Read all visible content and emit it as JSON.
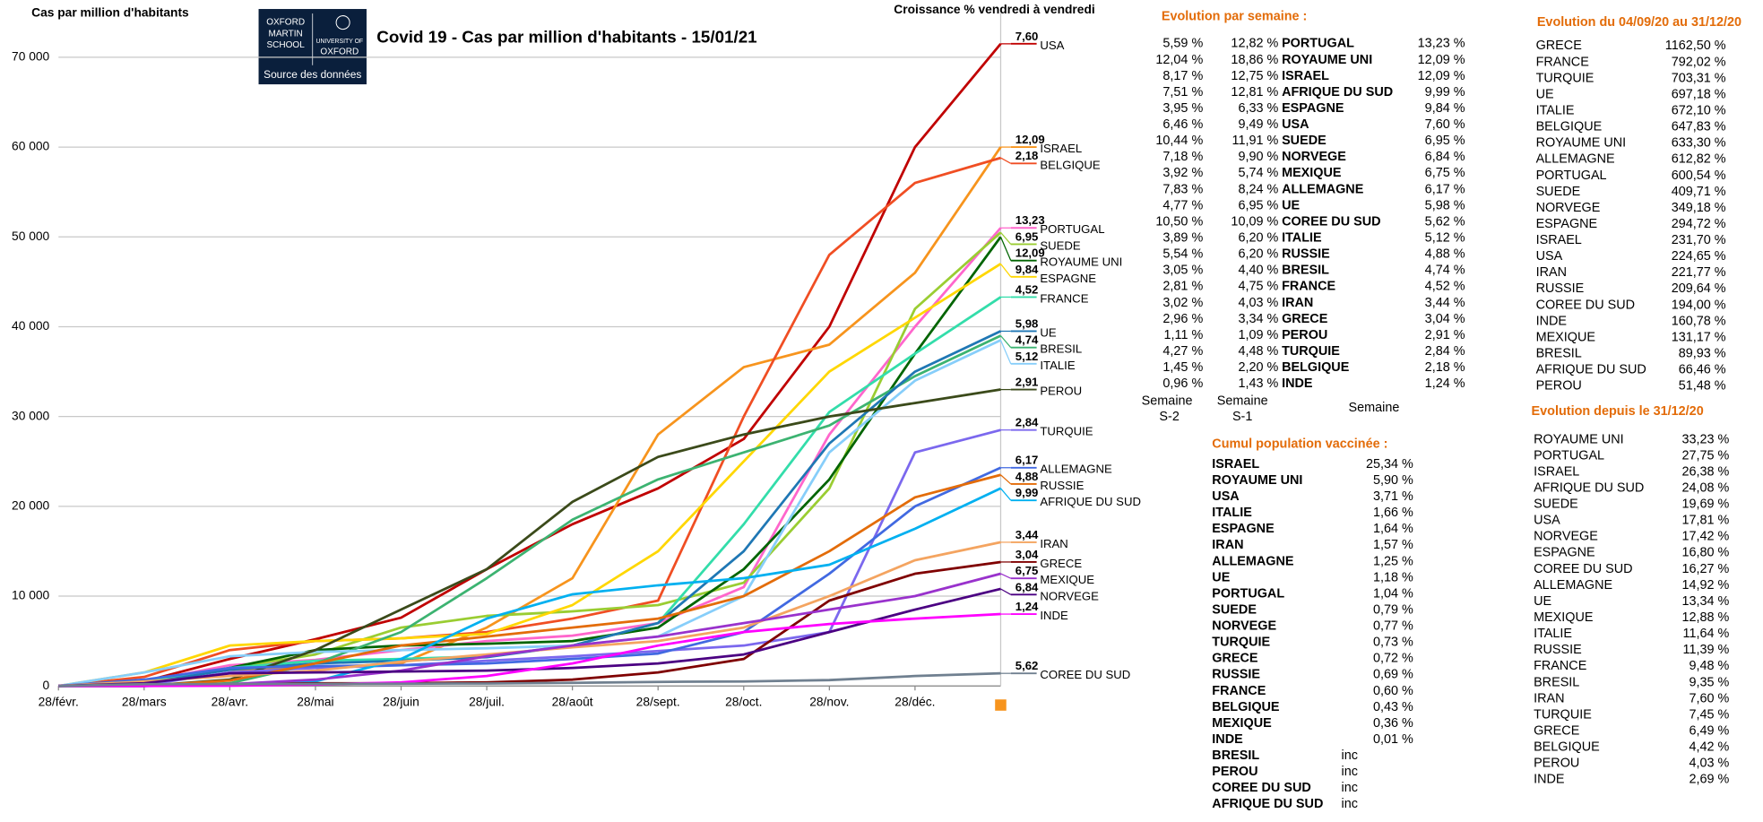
{
  "chart_data": {
    "type": "line",
    "title": "Covid 19 - Cas par million d'habitants - 15/01/21",
    "y_label": "Cas par million d'habitants",
    "growth_heading": "Croissance % vendredi à vendredi",
    "categories": [
      "28/févr.",
      "28/mars",
      "28/avr.",
      "28/mai",
      "28/juin",
      "28/juil.",
      "28/août",
      "28/sept.",
      "28/oct.",
      "28/nov.",
      "28/déc.",
      null
    ],
    "ylim": [
      0,
      75000
    ],
    "yticks": [
      {
        "value": 0,
        "label": "0"
      },
      {
        "value": 10000,
        "label": "10 000"
      },
      {
        "value": 20000,
        "label": "20 000"
      },
      {
        "value": 30000,
        "label": "30 000"
      },
      {
        "value": 40000,
        "label": "40 000"
      },
      {
        "value": 50000,
        "label": "50 000"
      },
      {
        "value": 60000,
        "label": "60 000"
      },
      {
        "value": 70000,
        "label": "70 000"
      }
    ],
    "grid": true,
    "series": [
      {
        "name": "USA",
        "growth": "7,60",
        "color": "#c00000",
        "values": [
          0,
          500,
          3000,
          5200,
          7600,
          13000,
          18000,
          22000,
          27500,
          40000,
          60000,
          71500
        ]
      },
      {
        "name": "ISRAEL",
        "growth": "12,09",
        "color": "#f7941d",
        "values": [
          0,
          500,
          1800,
          2000,
          2500,
          6500,
          12000,
          28000,
          35500,
          38000,
          46000,
          60000
        ]
      },
      {
        "name": "BELGIQUE",
        "growth": "2,18",
        "color": "#f04e23",
        "values": [
          0,
          1000,
          4000,
          5000,
          5300,
          6000,
          7500,
          9500,
          30000,
          48000,
          56000,
          58800
        ]
      },
      {
        "name": "PORTUGAL",
        "growth": "13,23",
        "color": "#ff66cc",
        "values": [
          0,
          500,
          2300,
          2900,
          4000,
          5000,
          5600,
          7000,
          11000,
          28000,
          40000,
          51000
        ]
      },
      {
        "name": "SUEDE",
        "growth": "6,95",
        "color": "#9acd32",
        "values": [
          0,
          500,
          2000,
          3500,
          6500,
          7800,
          8300,
          9000,
          11500,
          22000,
          42000,
          50500
        ]
      },
      {
        "name": "ROYAUME UNI",
        "growth": "12,09",
        "color": "#006400",
        "values": [
          0,
          300,
          2000,
          4000,
          4500,
          4700,
          5000,
          6500,
          13000,
          23000,
          37000,
          50000
        ]
      },
      {
        "name": "ESPAGNE",
        "growth": "9,84",
        "color": "#ffd700",
        "values": [
          0,
          1500,
          4500,
          5000,
          5300,
          5800,
          9000,
          15000,
          25000,
          35000,
          41000,
          47000
        ]
      },
      {
        "name": "FRANCE",
        "growth": "4,52",
        "color": "#33ddaa",
        "values": [
          0,
          500,
          2000,
          2800,
          3000,
          3300,
          4500,
          7000,
          18000,
          30500,
          37000,
          43300
        ]
      },
      {
        "name": "BRESIL",
        "growth": "4,74",
        "color": "#3cb371",
        "values": [
          0,
          0,
          300,
          2500,
          6000,
          12000,
          18500,
          23000,
          26000,
          29000,
          34500,
          39000
        ]
      },
      {
        "name": "UE",
        "growth": "5,98",
        "color": "#1f77b4",
        "values": [
          0,
          300,
          1800,
          2500,
          2800,
          3200,
          4500,
          7000,
          15000,
          27000,
          35000,
          39500
        ]
      },
      {
        "name": "ITALIE",
        "growth": "5,12",
        "color": "#87cefa",
        "values": [
          0,
          1500,
          3300,
          3800,
          4000,
          4200,
          4500,
          5500,
          10000,
          26000,
          34000,
          38500
        ]
      },
      {
        "name": "PEROU",
        "growth": "2,91",
        "color": "#3b4a1a",
        "values": [
          0,
          0,
          700,
          4000,
          8500,
          13000,
          20500,
          25500,
          28000,
          30000,
          31500,
          33000
        ]
      },
      {
        "name": "TURQUIE",
        "growth": "2,84",
        "color": "#7b68ee",
        "values": [
          0,
          100,
          1500,
          2000,
          2300,
          2800,
          3300,
          3900,
          4500,
          6000,
          26000,
          28500
        ]
      },
      {
        "name": "ALLEMAGNE",
        "growth": "6,17",
        "color": "#4169e1",
        "values": [
          0,
          700,
          2000,
          2200,
          2300,
          2500,
          3000,
          3600,
          6000,
          12500,
          20000,
          24300
        ]
      },
      {
        "name": "RUSSIE",
        "growth": "4,88",
        "color": "#e36c09",
        "values": [
          0,
          0,
          600,
          2500,
          4500,
          5500,
          6500,
          7500,
          10000,
          15000,
          21000,
          23500
        ]
      },
      {
        "name": "AFRIQUE DU SUD",
        "growth": "9,99",
        "color": "#00b0f0",
        "values": [
          0,
          0,
          100,
          500,
          3000,
          7500,
          10200,
          11200,
          12000,
          13500,
          17500,
          22000
        ]
      },
      {
        "name": "IRAN",
        "growth": "3,44",
        "color": "#f4a460",
        "values": [
          0,
          500,
          1100,
          1700,
          2700,
          3500,
          4300,
          5000,
          6500,
          10000,
          14000,
          16000
        ]
      },
      {
        "name": "GRECE",
        "growth": "3,04",
        "color": "#7f0000",
        "values": [
          0,
          100,
          200,
          300,
          300,
          400,
          700,
          1500,
          3000,
          9500,
          12500,
          13800
        ]
      },
      {
        "name": "MEXIQUE",
        "growth": "6,75",
        "color": "#9932cc",
        "values": [
          0,
          0,
          200,
          700,
          1700,
          3300,
          4500,
          5500,
          7000,
          8500,
          10000,
          12500
        ]
      },
      {
        "name": "NORVEGE",
        "growth": "6,84",
        "color": "#4b0082",
        "values": [
          0,
          300,
          1400,
          1500,
          1600,
          1700,
          2000,
          2500,
          3500,
          6000,
          8500,
          10800
        ]
      },
      {
        "name": "INDE",
        "growth": "1,24",
        "color": "#ff00ff",
        "values": [
          0,
          0,
          20,
          150,
          400,
          1100,
          2500,
          4500,
          6000,
          6900,
          7500,
          8000
        ]
      },
      {
        "name": "COREE DU SUD",
        "growth": "5,62",
        "color": "#708090",
        "values": [
          0,
          200,
          210,
          220,
          250,
          280,
          350,
          450,
          500,
          650,
          1100,
          1400
        ]
      }
    ]
  },
  "logo": {
    "left": [
      "OXFORD",
      "MARTIN",
      "SCHOOL"
    ],
    "right": [
      "UNIVERSITY OF",
      "OXFORD"
    ],
    "link": "Source des données"
  },
  "weekly": {
    "title": "Evolution par semaine :",
    "rows": [
      [
        "5,59 %",
        "12,82 %",
        "PORTUGAL",
        "13,23 %"
      ],
      [
        "12,04 %",
        "18,86 %",
        "ROYAUME UNI",
        "12,09 %"
      ],
      [
        "8,17 %",
        "12,75 %",
        "ISRAEL",
        "12,09 %"
      ],
      [
        "7,51 %",
        "12,81 %",
        "AFRIQUE DU SUD",
        "9,99 %"
      ],
      [
        "3,95 %",
        "6,33 %",
        "ESPAGNE",
        "9,84 %"
      ],
      [
        "6,46 %",
        "9,49 %",
        "USA",
        "7,60 %"
      ],
      [
        "10,44 %",
        "11,91 %",
        "SUEDE",
        "6,95 %"
      ],
      [
        "7,18 %",
        "9,90 %",
        "NORVEGE",
        "6,84 %"
      ],
      [
        "3,92 %",
        "5,74 %",
        "MEXIQUE",
        "6,75 %"
      ],
      [
        "7,83 %",
        "8,24 %",
        "ALLEMAGNE",
        "6,17 %"
      ],
      [
        "4,77 %",
        "6,95 %",
        "UE",
        "5,98 %"
      ],
      [
        "10,50 %",
        "10,09 %",
        "COREE DU SUD",
        "5,62 %"
      ],
      [
        "3,89 %",
        "6,20 %",
        "ITALIE",
        "5,12 %"
      ],
      [
        "5,54 %",
        "6,20 %",
        "RUSSIE",
        "4,88 %"
      ],
      [
        "3,05 %",
        "4,40 %",
        "BRESIL",
        "4,74 %"
      ],
      [
        "2,81 %",
        "4,75 %",
        "FRANCE",
        "4,52 %"
      ],
      [
        "3,02 %",
        "4,03 %",
        "IRAN",
        "3,44 %"
      ],
      [
        "2,96 %",
        "3,34 %",
        "GRECE",
        "3,04 %"
      ],
      [
        "1,11 %",
        "1,09 %",
        "PEROU",
        "2,91 %"
      ],
      [
        "4,27 %",
        "4,48 %",
        "TURQUIE",
        "2,84 %"
      ],
      [
        "1,45 %",
        "2,20 %",
        "BELGIQUE",
        "2,18 %"
      ],
      [
        "0,96 %",
        "1,43 %",
        "INDE",
        "1,24 %"
      ]
    ],
    "s2": [
      "Semaine",
      "S-2"
    ],
    "s1": [
      "Semaine",
      "S-1"
    ],
    "current": "Semaine"
  },
  "vaccination": {
    "title": "Cumul population vaccinée :",
    "rows": [
      [
        "ISRAEL",
        "25,34 %"
      ],
      [
        "ROYAUME UNI",
        "5,90 %"
      ],
      [
        "USA",
        "3,71 %"
      ],
      [
        "ITALIE",
        "1,66 %"
      ],
      [
        "ESPAGNE",
        "1,64 %"
      ],
      [
        "IRAN",
        "1,57 %"
      ],
      [
        "ALLEMAGNE",
        "1,25 %"
      ],
      [
        "UE",
        "1,18 %"
      ],
      [
        "PORTUGAL",
        "1,04 %"
      ],
      [
        "SUEDE",
        "0,79 %"
      ],
      [
        "NORVEGE",
        "0,77 %"
      ],
      [
        "TURQUIE",
        "0,73 %"
      ],
      [
        "GRECE",
        "0,72 %"
      ],
      [
        "RUSSIE",
        "0,69 %"
      ],
      [
        "FRANCE",
        "0,60 %"
      ],
      [
        "BELGIQUE",
        "0,43 %"
      ],
      [
        "MEXIQUE",
        "0,36 %"
      ],
      [
        "INDE",
        "0,01 %"
      ],
      [
        "BRESIL",
        "inc"
      ],
      [
        "PEROU",
        "inc"
      ],
      [
        "COREE DU SUD",
        "inc"
      ],
      [
        "AFRIQUE DU SUD",
        "inc"
      ]
    ]
  },
  "evolution_sept": {
    "title": "Evolution du 04/09/20 au 31/12/20",
    "rows": [
      [
        "GRECE",
        "1162,50 %"
      ],
      [
        "FRANCE",
        "792,02 %"
      ],
      [
        "TURQUIE",
        "703,31 %"
      ],
      [
        "UE",
        "697,18 %"
      ],
      [
        "ITALIE",
        "672,10 %"
      ],
      [
        "BELGIQUE",
        "647,83 %"
      ],
      [
        "ROYAUME UNI",
        "633,30 %"
      ],
      [
        "ALLEMAGNE",
        "612,82 %"
      ],
      [
        "PORTUGAL",
        "600,54 %"
      ],
      [
        "SUEDE",
        "409,71 %"
      ],
      [
        "NORVEGE",
        "349,18 %"
      ],
      [
        "ESPAGNE",
        "294,72 %"
      ],
      [
        "ISRAEL",
        "231,70 %"
      ],
      [
        "USA",
        "224,65 %"
      ],
      [
        "IRAN",
        "221,77 %"
      ],
      [
        "RUSSIE",
        "209,64 %"
      ],
      [
        "COREE DU SUD",
        "194,00 %"
      ],
      [
        "INDE",
        "160,78 %"
      ],
      [
        "MEXIQUE",
        "131,17 %"
      ],
      [
        "BRESIL",
        "89,93 %"
      ],
      [
        "AFRIQUE DU SUD",
        "66,46 %"
      ],
      [
        "PEROU",
        "51,48 %"
      ]
    ]
  },
  "evolution_dec": {
    "title": "Evolution depuis le 31/12/20",
    "rows": [
      [
        "ROYAUME UNI",
        "33,23 %"
      ],
      [
        "PORTUGAL",
        "27,75 %"
      ],
      [
        "ISRAEL",
        "26,38 %"
      ],
      [
        "AFRIQUE DU SUD",
        "24,08 %"
      ],
      [
        "SUEDE",
        "19,69 %"
      ],
      [
        "USA",
        "17,81 %"
      ],
      [
        "NORVEGE",
        "17,42 %"
      ],
      [
        "ESPAGNE",
        "16,80 %"
      ],
      [
        "COREE DU SUD",
        "16,27 %"
      ],
      [
        "ALLEMAGNE",
        "14,92 %"
      ],
      [
        "UE",
        "13,34 %"
      ],
      [
        "MEXIQUE",
        "12,88 %"
      ],
      [
        "ITALIE",
        "11,64 %"
      ],
      [
        "RUSSIE",
        "11,39 %"
      ],
      [
        "FRANCE",
        "9,48 %"
      ],
      [
        "BRESIL",
        "9,35 %"
      ],
      [
        "IRAN",
        "7,60 %"
      ],
      [
        "TURQUIE",
        "7,45 %"
      ],
      [
        "GRECE",
        "6,49 %"
      ],
      [
        "BELGIQUE",
        "4,42 %"
      ],
      [
        "PEROU",
        "4,03 %"
      ],
      [
        "INDE",
        "2,69 %"
      ]
    ]
  }
}
